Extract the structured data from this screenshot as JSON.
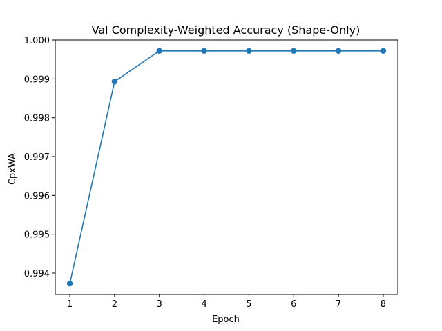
{
  "chart_data": {
    "type": "line",
    "title": "Val Complexity-Weighted Accuracy (Shape-Only)",
    "xlabel": "Epoch",
    "ylabel": "CpxWA",
    "x": [
      1,
      2,
      3,
      4,
      5,
      6,
      7,
      8
    ],
    "series": [
      {
        "values": [
          0.99373,
          0.99893,
          0.99972,
          0.99972,
          0.99972,
          0.99972,
          0.99972,
          0.99972
        ],
        "color": "#1f77b4",
        "marker": "circle"
      }
    ],
    "xlim": [
      0.675,
      8.325
    ],
    "ylim": [
      0.99345,
      1.0
    ],
    "xticks": [
      "1",
      "2",
      "3",
      "4",
      "5",
      "6",
      "7",
      "8"
    ],
    "yticks": [
      "0.994",
      "0.995",
      "0.996",
      "0.997",
      "0.998",
      "0.999",
      "1.000"
    ],
    "grid": false
  }
}
